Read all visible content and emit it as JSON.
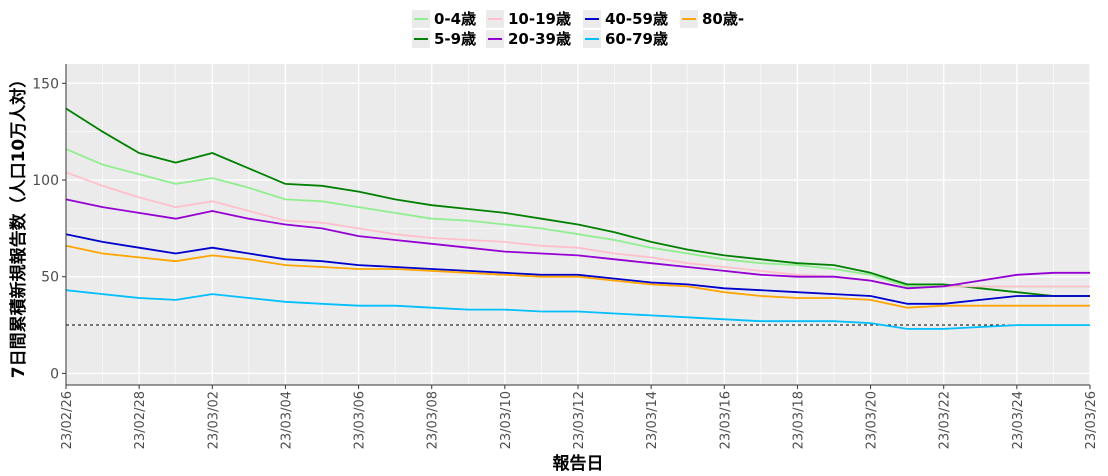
{
  "chart_data": {
    "type": "line",
    "title": "",
    "xlabel": "報告日",
    "ylabel": "7日間累積新規報告数（人口10万人対）",
    "ylim": [
      -6,
      160
    ],
    "yticks": [
      0,
      50,
      100,
      150
    ],
    "x": [
      "23/02/26",
      "23/02/27",
      "23/02/28",
      "23/03/01",
      "23/03/02",
      "23/03/03",
      "23/03/04",
      "23/03/05",
      "23/03/06",
      "23/03/07",
      "23/03/08",
      "23/03/09",
      "23/03/10",
      "23/03/11",
      "23/03/12",
      "23/03/13",
      "23/03/14",
      "23/03/15",
      "23/03/16",
      "23/03/17",
      "23/03/18",
      "23/03/19",
      "23/03/20",
      "23/03/21",
      "23/03/22",
      "23/03/23",
      "23/03/24",
      "23/03/25",
      "23/03/26"
    ],
    "xtick_labels": [
      "23/02/26",
      "23/02/28",
      "23/03/02",
      "23/03/04",
      "23/03/06",
      "23/03/08",
      "23/03/10",
      "23/03/12",
      "23/03/14",
      "23/03/16",
      "23/03/18",
      "23/03/20",
      "23/03/22",
      "23/03/24",
      "23/03/26"
    ],
    "reference_line": 25,
    "grid": true,
    "legend_position": "top",
    "series": [
      {
        "name": "0-4歳",
        "color": "#90ee90",
        "values": [
          116,
          108,
          103,
          98,
          101,
          96,
          90,
          89,
          86,
          83,
          80,
          79,
          77,
          75,
          72,
          69,
          65,
          62,
          59,
          57,
          56,
          54,
          51,
          45,
          45,
          45,
          45,
          45,
          45
        ]
      },
      {
        "name": "5-9歳",
        "color": "#008000",
        "values": [
          137,
          125,
          114,
          109,
          114,
          106,
          98,
          97,
          94,
          90,
          87,
          85,
          83,
          80,
          77,
          73,
          68,
          64,
          61,
          59,
          57,
          56,
          52,
          46,
          46,
          44,
          42,
          40,
          40
        ]
      },
      {
        "name": "10-19歳",
        "color": "#ffc0cb",
        "values": [
          104,
          97,
          91,
          86,
          89,
          84,
          79,
          78,
          75,
          72,
          70,
          69,
          68,
          66,
          65,
          62,
          60,
          57,
          55,
          53,
          51,
          50,
          48,
          44,
          45,
          45,
          45,
          45,
          45
        ]
      },
      {
        "name": "20-39歳",
        "color": "#9400d3",
        "values": [
          90,
          86,
          83,
          80,
          84,
          80,
          77,
          75,
          71,
          69,
          67,
          65,
          63,
          62,
          61,
          59,
          57,
          55,
          53,
          51,
          50,
          50,
          48,
          44,
          45,
          48,
          51,
          52,
          52
        ]
      },
      {
        "name": "40-59歳",
        "color": "#0000cd",
        "values": [
          72,
          68,
          65,
          62,
          65,
          62,
          59,
          58,
          56,
          55,
          54,
          53,
          52,
          51,
          51,
          49,
          47,
          46,
          44,
          43,
          42,
          41,
          40,
          36,
          36,
          38,
          40,
          40,
          40
        ]
      },
      {
        "name": "60-79歳",
        "color": "#00bfff",
        "values": [
          43,
          41,
          39,
          38,
          41,
          39,
          37,
          36,
          35,
          35,
          34,
          33,
          33,
          32,
          32,
          31,
          30,
          29,
          28,
          27,
          27,
          27,
          26,
          23,
          23,
          24,
          25,
          25,
          25
        ]
      },
      {
        "name": "80歳-",
        "color": "#ffa500",
        "values": [
          66,
          62,
          60,
          58,
          61,
          59,
          56,
          55,
          54,
          54,
          53,
          52,
          51,
          50,
          50,
          48,
          46,
          45,
          42,
          40,
          39,
          39,
          38,
          34,
          35,
          35,
          35,
          35,
          35
        ]
      }
    ]
  }
}
